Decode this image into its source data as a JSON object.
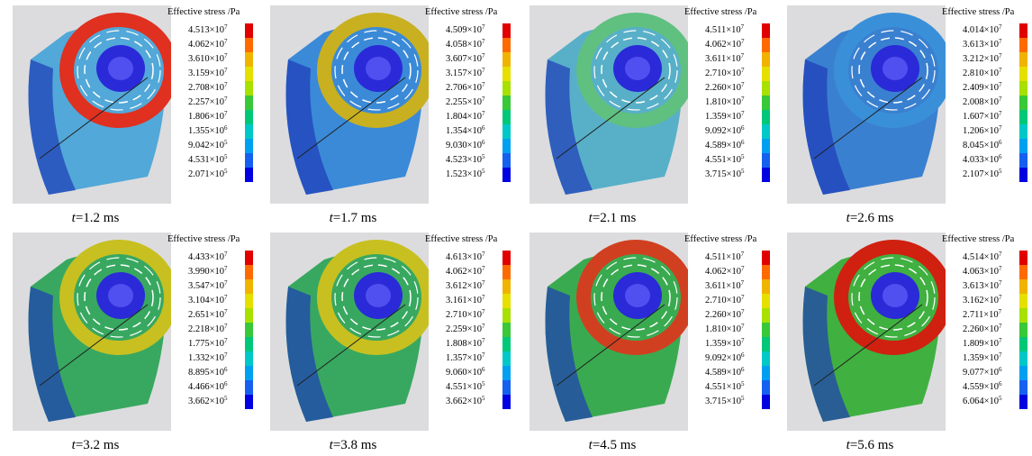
{
  "figure": {
    "stress_title": "Effective stress /Pa",
    "swatch_colors": [
      "#e00000",
      "#ff6a00",
      "#f0b400",
      "#e6e000",
      "#a8e000",
      "#38c838",
      "#00c878",
      "#00c8c8",
      "#00a0f0",
      "#1660f0",
      "#0000e0"
    ],
    "panels": [
      {
        "time": "=1.2 ms",
        "legend": [
          [
            "4.513",
            "7"
          ],
          [
            "4.062",
            "7"
          ],
          [
            "3.610",
            "7"
          ],
          [
            "3.159",
            "7"
          ],
          [
            "2.708",
            "7"
          ],
          [
            "2.257",
            "7"
          ],
          [
            "1.806",
            "7"
          ],
          [
            "1.355",
            "6"
          ],
          [
            "9.042",
            "5"
          ],
          [
            "4.531",
            "5"
          ],
          [
            "2.071",
            "5"
          ]
        ]
      },
      {
        "time": "=1.7 ms",
        "legend": [
          [
            "4.509",
            "7"
          ],
          [
            "4.058",
            "7"
          ],
          [
            "3.607",
            "7"
          ],
          [
            "3.157",
            "7"
          ],
          [
            "2.706",
            "7"
          ],
          [
            "2.255",
            "7"
          ],
          [
            "1.804",
            "7"
          ],
          [
            "1.354",
            "6"
          ],
          [
            "9.030",
            "6"
          ],
          [
            "4.523",
            "5"
          ],
          [
            "1.523",
            "5"
          ]
        ]
      },
      {
        "time": "=2.1 ms",
        "legend": [
          [
            "4.511",
            "7"
          ],
          [
            "4.062",
            "7"
          ],
          [
            "3.611",
            "7"
          ],
          [
            "2.710",
            "7"
          ],
          [
            "2.260",
            "7"
          ],
          [
            "1.810",
            "7"
          ],
          [
            "1.359",
            "7"
          ],
          [
            "9.092",
            "6"
          ],
          [
            "4.589",
            "6"
          ],
          [
            "4.551",
            "5"
          ],
          [
            "3.715",
            "5"
          ]
        ]
      },
      {
        "time": "=2.6 ms",
        "legend": [
          [
            "4.014",
            "7"
          ],
          [
            "3.613",
            "7"
          ],
          [
            "3.212",
            "7"
          ],
          [
            "2.810",
            "7"
          ],
          [
            "2.409",
            "7"
          ],
          [
            "2.008",
            "7"
          ],
          [
            "1.607",
            "7"
          ],
          [
            "1.206",
            "7"
          ],
          [
            "8.045",
            "6"
          ],
          [
            "4.033",
            "6"
          ],
          [
            "2.107",
            "5"
          ]
        ]
      },
      {
        "time": "=3.2 ms",
        "legend": [
          [
            "4.433",
            "7"
          ],
          [
            "3.990",
            "7"
          ],
          [
            "3.547",
            "7"
          ],
          [
            "3.104",
            "7"
          ],
          [
            "2.651",
            "7"
          ],
          [
            "2.218",
            "7"
          ],
          [
            "1.775",
            "7"
          ],
          [
            "1.332",
            "7"
          ],
          [
            "8.895",
            "6"
          ],
          [
            "4.466",
            "6"
          ],
          [
            "3.662",
            "5"
          ]
        ]
      },
      {
        "time": "=3.8 ms",
        "legend": [
          [
            "4.613",
            "7"
          ],
          [
            "4.062",
            "7"
          ],
          [
            "3.612",
            "7"
          ],
          [
            "3.161",
            "7"
          ],
          [
            "2.710",
            "7"
          ],
          [
            "2.259",
            "7"
          ],
          [
            "1.808",
            "7"
          ],
          [
            "1.357",
            "7"
          ],
          [
            "9.060",
            "6"
          ],
          [
            "4.551",
            "5"
          ],
          [
            "3.662",
            "5"
          ]
        ]
      },
      {
        "time": "=4.5 ms",
        "legend": [
          [
            "4.511",
            "7"
          ],
          [
            "4.062",
            "7"
          ],
          [
            "3.611",
            "7"
          ],
          [
            "2.710",
            "7"
          ],
          [
            "2.260",
            "7"
          ],
          [
            "1.810",
            "7"
          ],
          [
            "1.359",
            "7"
          ],
          [
            "9.092",
            "6"
          ],
          [
            "4.589",
            "6"
          ],
          [
            "4.551",
            "5"
          ],
          [
            "3.715",
            "5"
          ]
        ]
      },
      {
        "time": "=5.6 ms",
        "legend": [
          [
            "4.514",
            "7"
          ],
          [
            "4.063",
            "7"
          ],
          [
            "3.613",
            "7"
          ],
          [
            "3.162",
            "7"
          ],
          [
            "2.711",
            "7"
          ],
          [
            "2.260",
            "7"
          ],
          [
            "1.809",
            "7"
          ],
          [
            "1.359",
            "7"
          ],
          [
            "9.077",
            "6"
          ],
          [
            "4.559",
            "6"
          ],
          [
            "6.064",
            "5"
          ]
        ]
      }
    ],
    "time_var": "t",
    "times_sign": "×",
    "base": "10"
  }
}
